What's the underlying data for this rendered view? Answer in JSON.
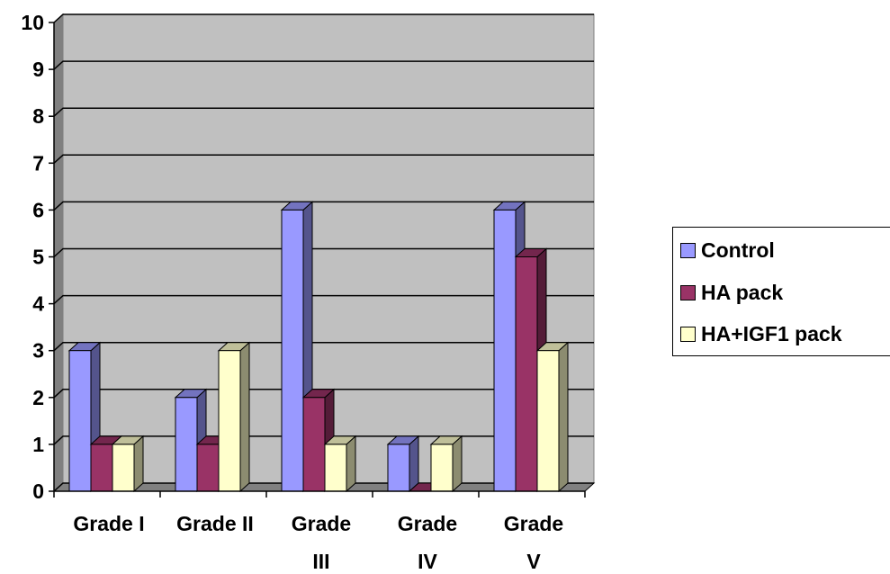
{
  "chart_data": {
    "type": "bar",
    "categories": [
      "Grade I",
      "Grade II",
      "Grade III",
      "Grade IV",
      "Grade V"
    ],
    "category_lines": [
      [
        "Grade I"
      ],
      [
        "Grade II"
      ],
      [
        "Grade",
        "III"
      ],
      [
        "Grade",
        "IV"
      ],
      [
        "Grade",
        "V"
      ]
    ],
    "series": [
      {
        "name": "Control",
        "values": [
          3,
          2,
          6,
          1,
          6
        ],
        "color": "#9999ff"
      },
      {
        "name": "HA pack",
        "values": [
          1,
          1,
          2,
          0,
          5
        ],
        "color": "#993366"
      },
      {
        "name": "HA+IGF1 pack",
        "values": [
          1,
          3,
          1,
          1,
          3
        ],
        "color": "#ffffcc"
      }
    ],
    "yticks": [
      "0",
      "1",
      "2",
      "3",
      "4",
      "5",
      "6",
      "7",
      "8",
      "9",
      "10"
    ],
    "ylim": [
      0,
      10
    ],
    "grid": true,
    "legend": "right",
    "plot_background": "#c0c0c0",
    "title": "",
    "xlabel": "",
    "ylabel": ""
  }
}
